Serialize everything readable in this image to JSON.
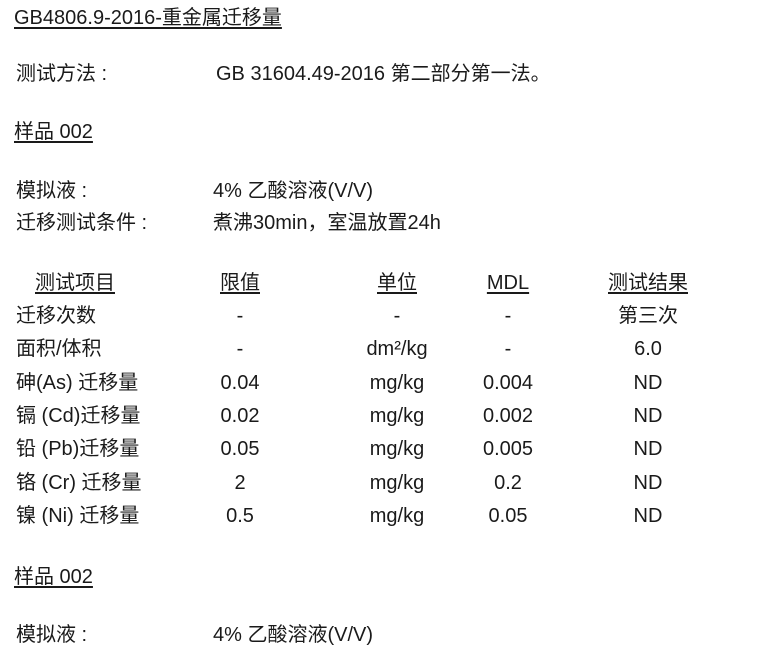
{
  "title": "GB4806.9-2016-重金属迁移量",
  "method": {
    "label": "测试方法 :",
    "value": "GB 31604.49-2016 第二部分第一法。"
  },
  "samples": [
    {
      "heading": "样品 002",
      "simulant": {
        "label": "模拟液 :",
        "value": "4% 乙酸溶液(V/V)"
      },
      "condition": {
        "label": "迁移测试条件 :",
        "value": "煮沸30min，室温放置24h"
      },
      "table": {
        "headers": [
          "测试项目",
          "限值",
          "单位",
          "MDL",
          "测试结果"
        ],
        "rows": [
          [
            "迁移次数",
            "-",
            "-",
            "-",
            "第三次"
          ],
          [
            "面积/体积",
            "-",
            "dm²/kg",
            "-",
            "6.0"
          ],
          [
            "砷(As) 迁移量",
            "0.04",
            "mg/kg",
            "0.004",
            "ND"
          ],
          [
            "镉 (Cd)迁移量",
            "0.02",
            "mg/kg",
            "0.002",
            "ND"
          ],
          [
            "铅 (Pb)迁移量",
            "0.05",
            "mg/kg",
            "0.005",
            "ND"
          ],
          [
            "铬 (Cr) 迁移量",
            "2",
            "mg/kg",
            "0.2",
            "ND"
          ],
          [
            "镍 (Ni) 迁移量",
            "0.5",
            "mg/kg",
            "0.05",
            "ND"
          ]
        ]
      }
    },
    {
      "heading": "样品 002",
      "simulant": {
        "label": "模拟液 :",
        "value": "4% 乙酸溶液(V/V)"
      }
    }
  ]
}
